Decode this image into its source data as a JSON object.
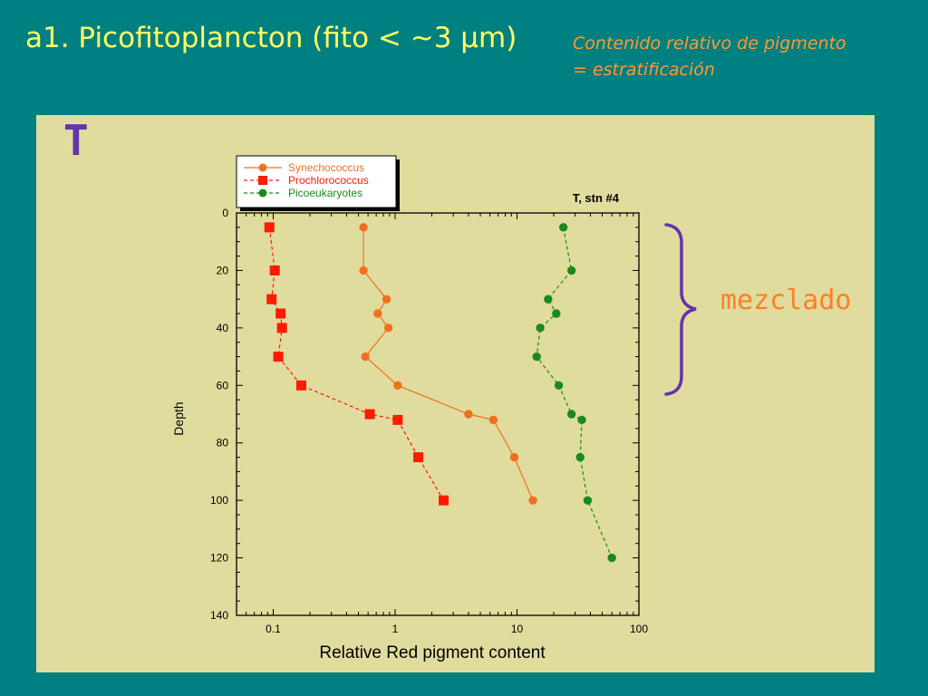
{
  "slide": {
    "title": "a1. Picofitoplancton (fito < ~3 µm)",
    "subtitle_line1": "Contenido relativo de pigmento",
    "subtitle_line2": "= estratificación",
    "panel_letter": "T",
    "bracket_label": "mezclado"
  },
  "colors": {
    "background": "#008080",
    "panel": "#e0dc9e",
    "title": "#ffff66",
    "subtitle": "#ff9933",
    "bracket": "#6633aa",
    "bracket_label": "#ff7f27"
  },
  "chart_data": {
    "type": "scatter",
    "title": "T, stn #4",
    "xlabel": "Relative Red pigment content",
    "ylabel": "Depth",
    "xscale": "log",
    "xlim": [
      0.05,
      100
    ],
    "ylim": [
      0,
      140
    ],
    "y_inverted": true,
    "xticks": [
      0.1,
      1,
      10,
      100
    ],
    "xtick_labels": [
      "0.1",
      "1",
      "10",
      "100"
    ],
    "yticks": [
      0,
      20,
      40,
      60,
      80,
      100,
      120,
      140
    ],
    "ytick_labels": [
      "0",
      "20",
      "40",
      "60",
      "80",
      "100",
      "120",
      "140"
    ],
    "legend_position": "top-left",
    "series": [
      {
        "name": "Synechococcus",
        "color": "#f07020",
        "marker": "circle",
        "line": "solid",
        "points": [
          {
            "x": 0.55,
            "y": 5
          },
          {
            "x": 0.55,
            "y": 20
          },
          {
            "x": 0.85,
            "y": 30
          },
          {
            "x": 0.72,
            "y": 35
          },
          {
            "x": 0.88,
            "y": 40
          },
          {
            "x": 0.57,
            "y": 50
          },
          {
            "x": 1.05,
            "y": 60
          },
          {
            "x": 4.0,
            "y": 70
          },
          {
            "x": 6.4,
            "y": 72
          },
          {
            "x": 9.5,
            "y": 85
          },
          {
            "x": 13.5,
            "y": 100
          }
        ]
      },
      {
        "name": "Prochlorococcus",
        "color": "#ff1a00",
        "marker": "square",
        "line": "dashed",
        "points": [
          {
            "x": 0.093,
            "y": 5
          },
          {
            "x": 0.103,
            "y": 20
          },
          {
            "x": 0.097,
            "y": 30
          },
          {
            "x": 0.115,
            "y": 35
          },
          {
            "x": 0.118,
            "y": 40
          },
          {
            "x": 0.11,
            "y": 50
          },
          {
            "x": 0.17,
            "y": 60
          },
          {
            "x": 0.62,
            "y": 70
          },
          {
            "x": 1.05,
            "y": 72
          },
          {
            "x": 1.55,
            "y": 85
          },
          {
            "x": 2.5,
            "y": 100
          }
        ]
      },
      {
        "name": "Picoeukaryotes",
        "color": "#1a8a1a",
        "marker": "circle",
        "line": "dashed",
        "points": [
          {
            "x": 24,
            "y": 5
          },
          {
            "x": 28,
            "y": 20
          },
          {
            "x": 18,
            "y": 30
          },
          {
            "x": 21,
            "y": 35
          },
          {
            "x": 15.5,
            "y": 40
          },
          {
            "x": 14.5,
            "y": 50
          },
          {
            "x": 22,
            "y": 60
          },
          {
            "x": 28,
            "y": 70
          },
          {
            "x": 34,
            "y": 72
          },
          {
            "x": 33,
            "y": 85
          },
          {
            "x": 38,
            "y": 100
          },
          {
            "x": 60,
            "y": 120
          }
        ]
      }
    ]
  }
}
